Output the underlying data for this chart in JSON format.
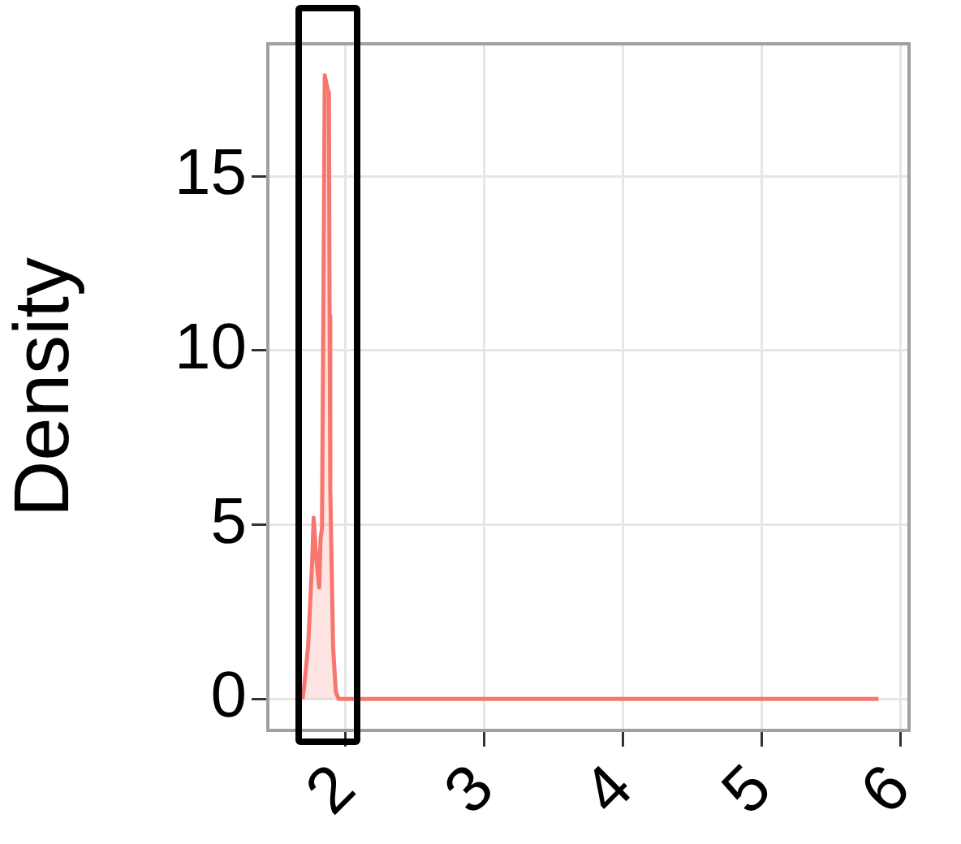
{
  "chart_data": {
    "type": "area",
    "ylabel": "Density",
    "x": [
      1.69,
      1.7,
      1.73,
      1.76,
      1.77,
      1.79,
      1.81,
      1.82,
      1.83,
      1.84,
      1.85,
      1.87,
      1.88,
      1.885,
      1.89,
      1.91,
      1.93,
      1.95,
      5.84
    ],
    "series": [
      {
        "color": "#f8766d",
        "values": [
          0,
          0.3,
          1.5,
          4.0,
          5.2,
          4.0,
          3.2,
          4.6,
          4.9,
          11,
          17.9,
          17.5,
          17.4,
          11,
          6,
          1.5,
          0.2,
          0,
          0
        ]
      }
    ],
    "xlim": [
      1.44,
      6.06
    ],
    "xticks": [
      2,
      3,
      4,
      5,
      6
    ],
    "ylim": [
      -0.9,
      18.8
    ],
    "yticks": [
      0,
      5,
      10,
      15
    ],
    "grid": true,
    "legend": false
  }
}
